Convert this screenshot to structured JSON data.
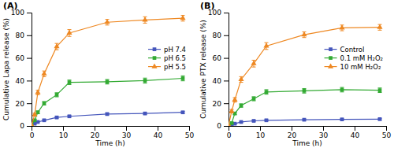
{
  "chart_data": [
    {
      "type": "line",
      "title": "(A)",
      "xlabel": "Time (h)",
      "ylabel": "Cumulative Lapa release (%)",
      "x": [
        0,
        1,
        2,
        4,
        8,
        12,
        24,
        36,
        48
      ],
      "xlim": [
        0,
        50
      ],
      "ylim": [
        0,
        100
      ],
      "xticks": [
        0,
        10,
        20,
        30,
        40,
        50
      ],
      "yticks": [
        0,
        20,
        40,
        60,
        80,
        100
      ],
      "grid": false,
      "legend": "right",
      "series": [
        {
          "name": "pH 7.4",
          "color": "#4455bb",
          "marker": "square",
          "values": [
            0.5,
            2.0,
            3.5,
            5.0,
            7.5,
            8.5,
            10.5,
            11.0,
            12.0
          ],
          "errors": [
            0.3,
            0.4,
            0.5,
            0.6,
            0.7,
            0.7,
            0.8,
            0.8,
            0.9
          ]
        },
        {
          "name": "pH 6.5",
          "color": "#33aa33",
          "marker": "square",
          "values": [
            0.5,
            5.0,
            12.0,
            20.0,
            27.5,
            38.5,
            39.0,
            40.0,
            42.0
          ],
          "errors": [
            0.3,
            0.8,
            1.2,
            1.5,
            1.8,
            2.0,
            2.0,
            2.2,
            2.2
          ]
        },
        {
          "name": "pH 5.5",
          "color": "#ee8822",
          "marker": "triangle",
          "values": [
            0.5,
            10.0,
            29.5,
            46.0,
            70.0,
            82.0,
            91.5,
            93.5,
            95.0
          ],
          "errors": [
            0.3,
            1.2,
            2.0,
            2.5,
            2.8,
            3.0,
            2.5,
            2.8,
            2.5
          ]
        }
      ]
    },
    {
      "type": "line",
      "title": "(B)",
      "xlabel": "Time (h)",
      "ylabel": "Cumulative PTX release (%)",
      "x": [
        0,
        1,
        2,
        4,
        8,
        12,
        24,
        36,
        48
      ],
      "xlim": [
        0,
        50
      ],
      "ylim": [
        0,
        100
      ],
      "xticks": [
        0,
        10,
        20,
        30,
        40,
        50
      ],
      "yticks": [
        0,
        20,
        40,
        60,
        80,
        100
      ],
      "grid": false,
      "legend": "right",
      "series": [
        {
          "name": "Control",
          "color": "#4455bb",
          "marker": "square",
          "values": [
            0.3,
            1.0,
            2.0,
            3.5,
            4.5,
            5.0,
            5.5,
            5.8,
            6.0
          ],
          "errors": [
            0.2,
            0.3,
            0.4,
            0.5,
            0.5,
            0.6,
            0.6,
            0.6,
            0.7
          ]
        },
        {
          "name": "0.1 mM H₂O₂",
          "color": "#33aa33",
          "marker": "square",
          "values": [
            0.3,
            2.5,
            11.0,
            18.0,
            24.0,
            30.0,
            31.0,
            32.0,
            31.5
          ],
          "errors": [
            0.2,
            0.5,
            1.0,
            1.5,
            1.8,
            2.0,
            2.0,
            2.0,
            2.0
          ]
        },
        {
          "name": "10 mM H₂O₂",
          "color": "#ee8822",
          "marker": "triangle",
          "values": [
            0.5,
            13.0,
            23.0,
            41.0,
            55.0,
            70.5,
            80.5,
            86.5,
            87.0
          ],
          "errors": [
            0.3,
            1.5,
            2.0,
            2.5,
            3.0,
            3.0,
            2.5,
            2.5,
            2.5
          ]
        }
      ]
    }
  ]
}
